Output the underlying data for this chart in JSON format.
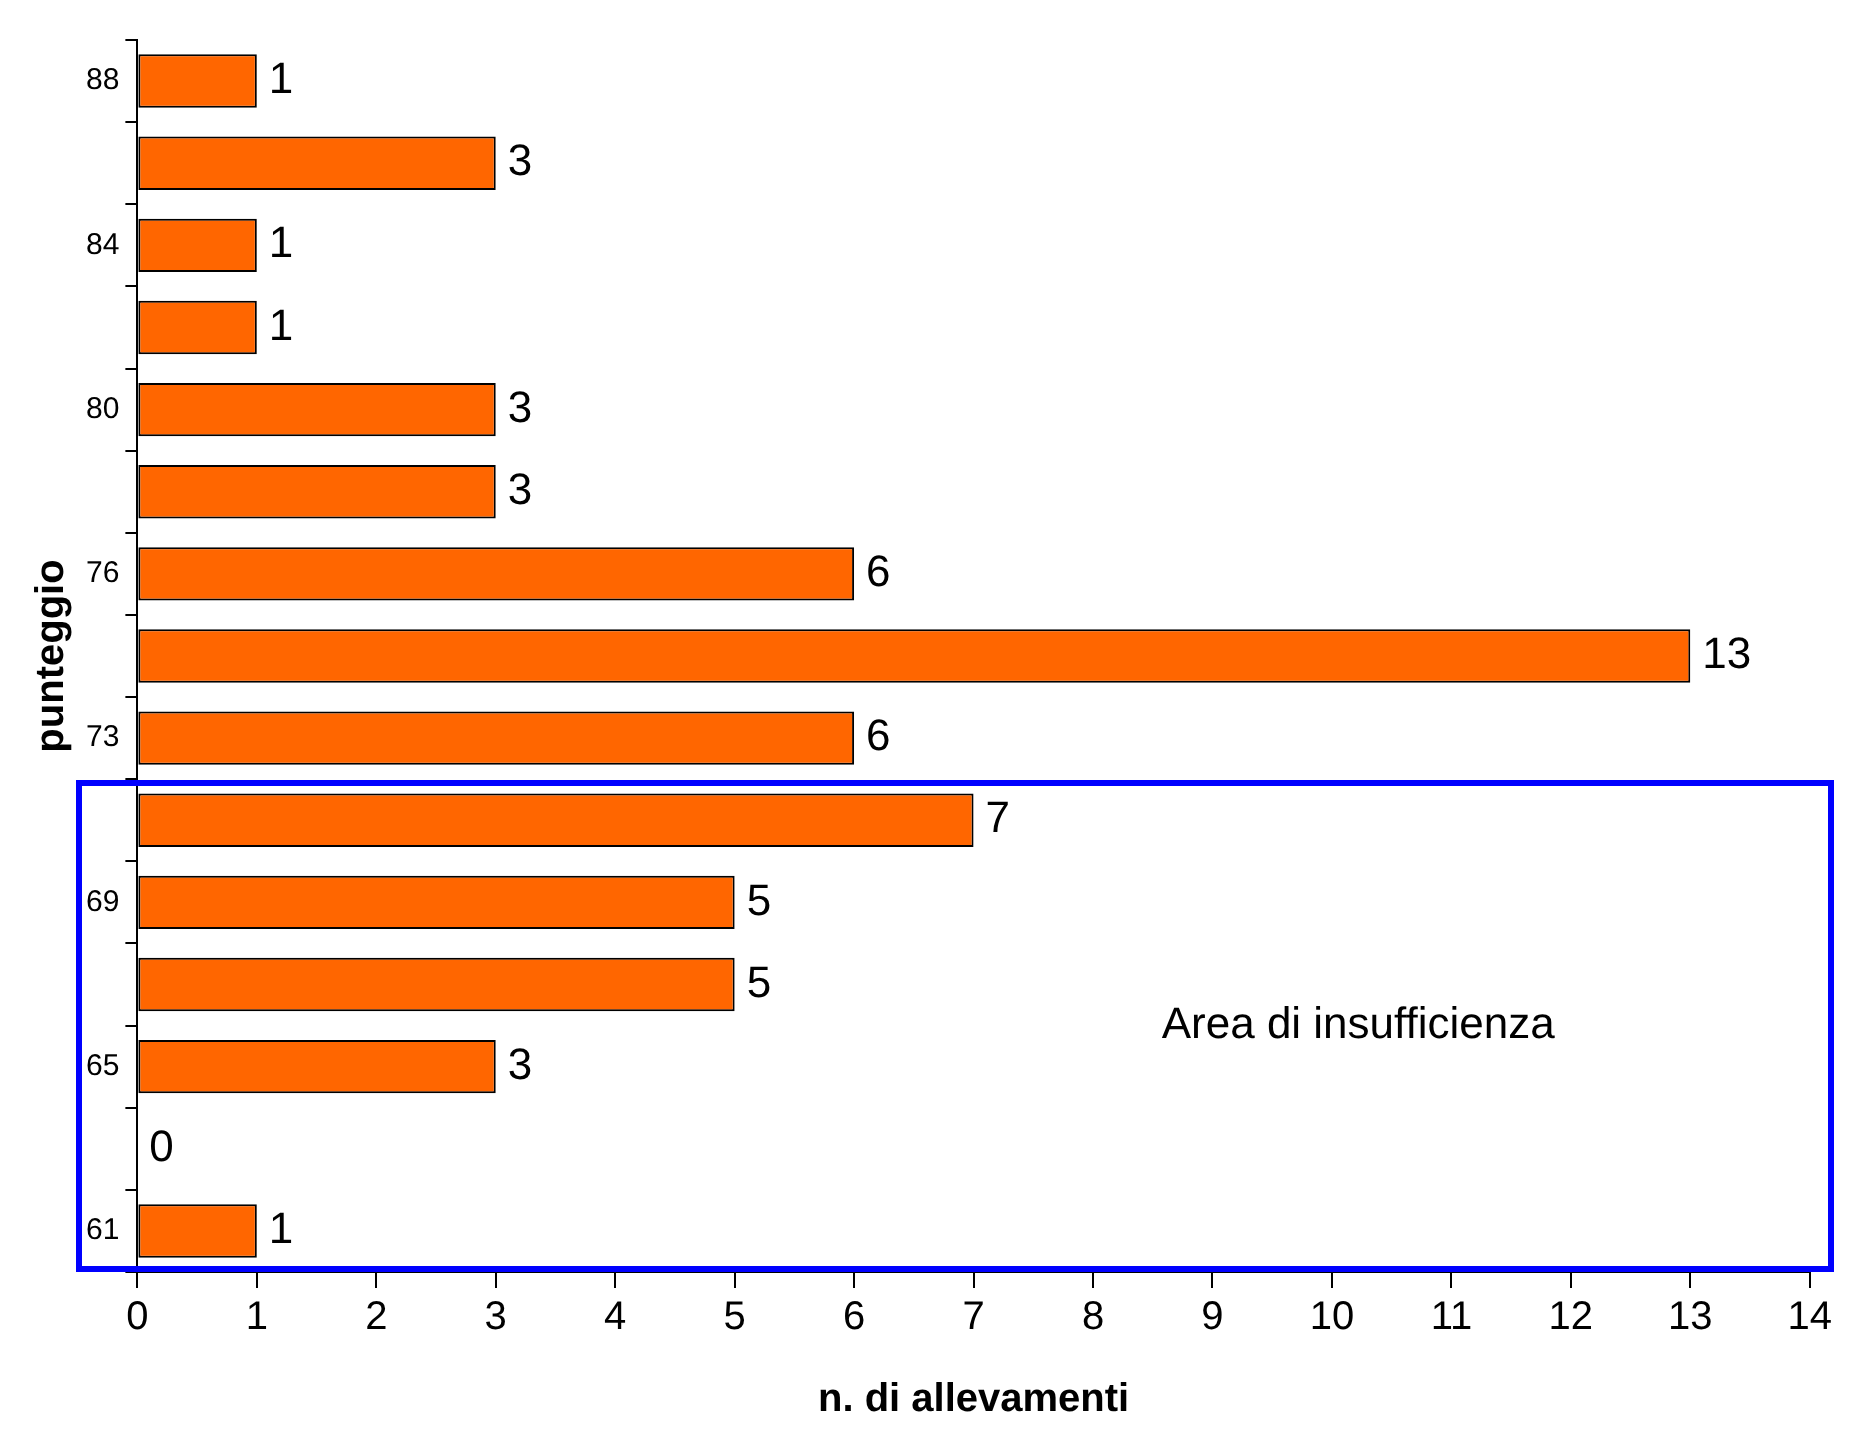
{
  "chart_data": {
    "type": "bar",
    "orientation": "horizontal",
    "xlabel": "n. di allevamenti",
    "ylabel": "punteggio",
    "categories": [
      "88",
      null,
      "84",
      null,
      "80",
      null,
      "76",
      null,
      "73",
      null,
      "69",
      null,
      "65",
      null,
      "61"
    ],
    "values": [
      1,
      3,
      1,
      1,
      3,
      3,
      6,
      13,
      6,
      7,
      5,
      5,
      3,
      0,
      1
    ],
    "color": "#ff6600",
    "xlim": [
      0,
      14
    ],
    "xticks": [
      0,
      1,
      2,
      3,
      4,
      5,
      6,
      7,
      8,
      9,
      10,
      11,
      12,
      13,
      14
    ],
    "grid": false,
    "legend": false,
    "data_labels": true,
    "annotations": [
      "Area di insufficienza"
    ]
  }
}
